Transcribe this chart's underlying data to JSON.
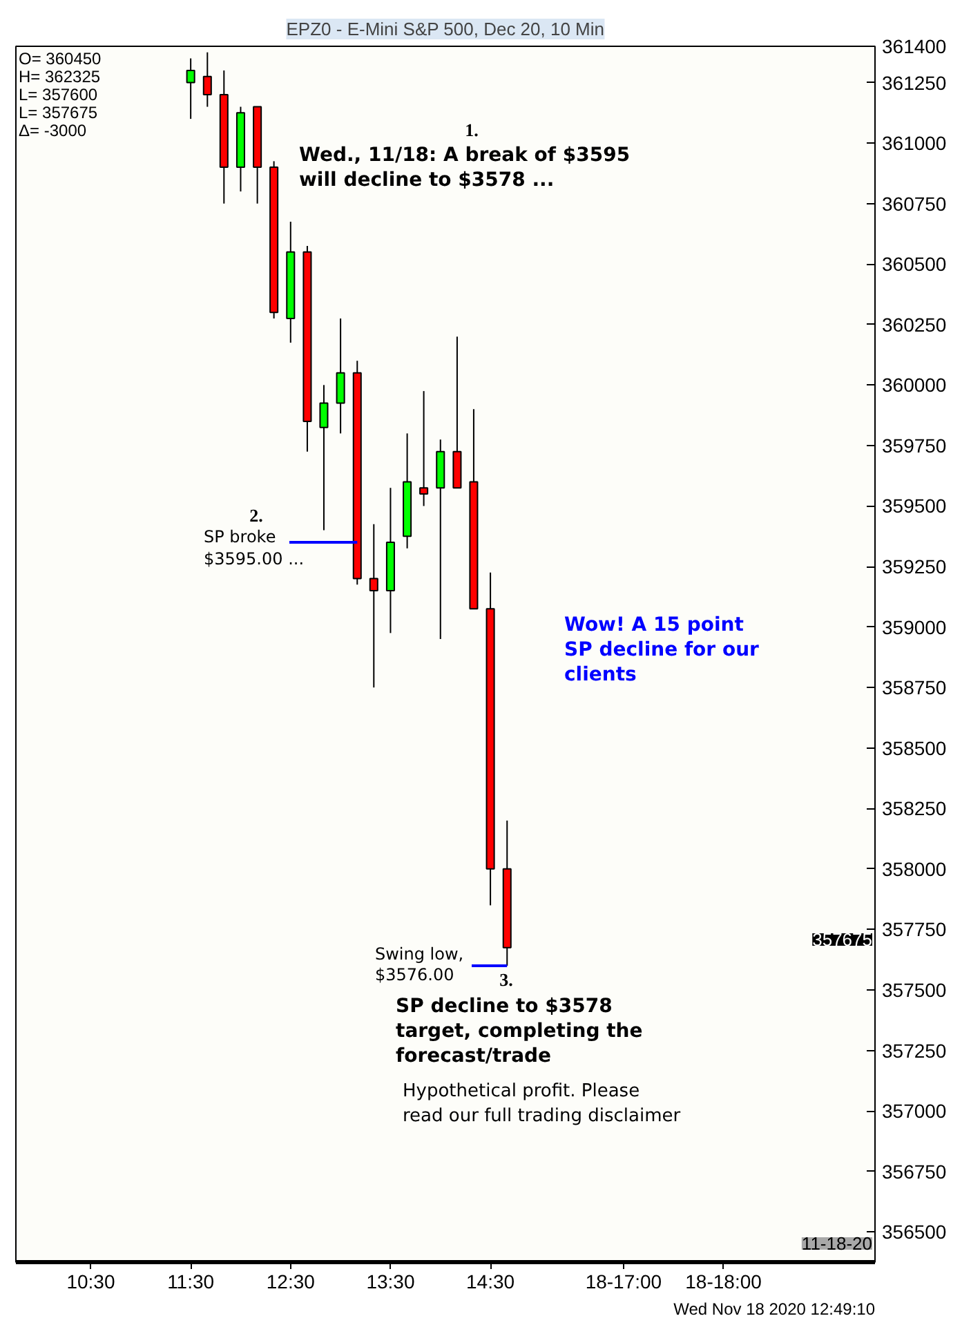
{
  "chart_data": {
    "type": "candlestick",
    "title": "EPZ0 - E-Mini S&P 500, Dec 20, 10 Min",
    "x": [
      11.5,
      11.667,
      11.833,
      12.0,
      12.167,
      12.333,
      12.5,
      12.667,
      12.833,
      13.0,
      13.167,
      13.333,
      13.5,
      13.667,
      13.833,
      14.0,
      14.167,
      14.333,
      14.5,
      14.667
    ],
    "ohlc": [
      [
        361250,
        361350,
        361100,
        361300
      ],
      [
        361275,
        361375,
        361150,
        361200
      ],
      [
        361200,
        361300,
        360750,
        360900
      ],
      [
        360900,
        361150,
        360800,
        361125
      ],
      [
        361150,
        361150,
        360750,
        360900
      ],
      [
        360900,
        360925,
        360275,
        360300
      ],
      [
        360275,
        360675,
        360175,
        360550
      ],
      [
        360550,
        360575,
        359725,
        359850
      ],
      [
        359825,
        360000,
        359400,
        359925
      ],
      [
        359925,
        360275,
        359800,
        360050
      ],
      [
        360050,
        360100,
        359175,
        359200
      ],
      [
        359200,
        359425,
        358750,
        359150
      ],
      [
        359150,
        359575,
        358975,
        359350
      ],
      [
        359375,
        359800,
        359325,
        359600
      ],
      [
        359575,
        359975,
        359500,
        359550
      ],
      [
        359575,
        359775,
        358950,
        359725
      ],
      [
        359725,
        360200,
        359575,
        359575
      ],
      [
        359600,
        359900,
        359075,
        359075
      ],
      [
        359075,
        359225,
        357850,
        358000
      ],
      [
        358000,
        358200,
        357600,
        357675
      ]
    ],
    "colors": [
      "#00ff00",
      "#ff0000",
      "#ff0000",
      "#00ff00",
      "#ff0000",
      "#ff0000",
      "#00ff00",
      "#ff0000",
      "#00ff00",
      "#00ff00",
      "#ff0000",
      "#ff0000",
      "#00ff00",
      "#00ff00",
      "#ff0000",
      "#00ff00",
      "#ff0000",
      "#ff0000",
      "#ff0000",
      "#ff0000"
    ],
    "xlim": [
      9.75,
      18.35
    ],
    "xticks": [
      {
        "value": 10.5,
        "label": "10:30"
      },
      {
        "value": 11.5,
        "label": "11:30"
      },
      {
        "value": 12.5,
        "label": "12:30"
      },
      {
        "value": 13.5,
        "label": "13:30"
      },
      {
        "value": 14.5,
        "label": "14:30"
      },
      {
        "value": 15.833,
        "label": "18-17:00"
      },
      {
        "value": 16.833,
        "label": "18-18:00"
      }
    ],
    "ylim": [
      356375,
      361400
    ],
    "yticks": [
      356500,
      356750,
      357000,
      357250,
      357500,
      357750,
      358000,
      358250,
      358500,
      358750,
      359000,
      359250,
      359500,
      359750,
      360000,
      360250,
      360500,
      360750,
      361000,
      361250,
      361400
    ],
    "annotations": [
      "O= 360450\nH= 362325\nL= 357600\nL= 357675\nΔ= -3000",
      "1.",
      "Wed., 11/18: A break of $3595\nwill decline to $3578 ...",
      "2.",
      {
        "text": "SP broke\n$3595.00 ...",
        "x": 13.167,
        "y": 359350
      },
      {
        "text": "Swing low,\n$3576.00",
        "x": 14.667,
        "y": 357600
      },
      "3.",
      "SP decline to $3578\ntarget, completing the\nforecast/trade",
      "Wow! A 15 point\nSP decline for our\nclients",
      "Hypothetical profit. Please\nread our full trading disclaimer",
      "357675",
      "11-18-20",
      "Wed Nov 18 2020 12:49:10"
    ]
  }
}
